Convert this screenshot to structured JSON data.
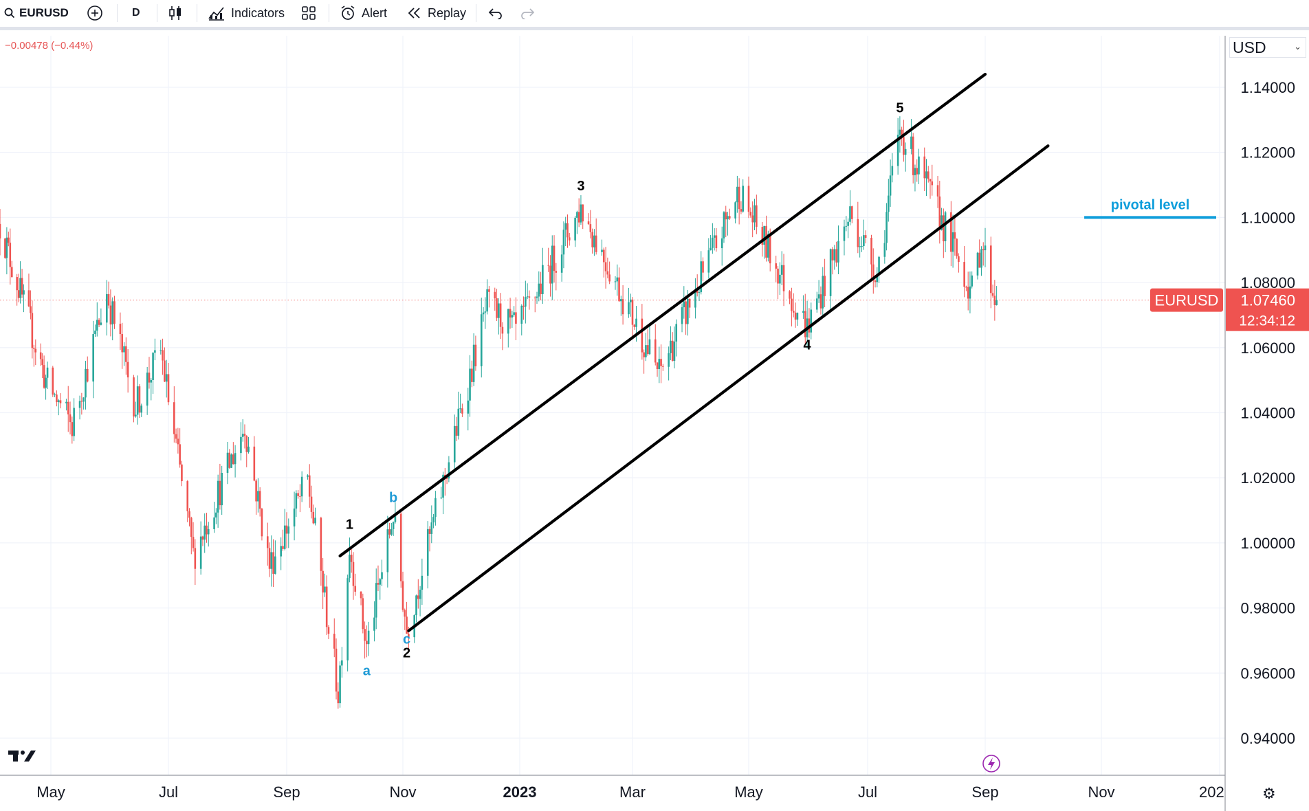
{
  "toolbar": {
    "symbol": "EURUSD",
    "interval": "D",
    "indicators_label": "Indicators",
    "alert_label": "Alert",
    "replay_label": "Replay"
  },
  "header": {
    "change": "−0.00478 (−0.44%)"
  },
  "currency_selector": "USD",
  "price_scale": {
    "ticks": [
      "1.14000",
      "1.12000",
      "1.10000",
      "1.08000",
      "1.06000",
      "1.04000",
      "1.02000",
      "1.00000",
      "0.98000",
      "0.96000",
      "0.94000"
    ]
  },
  "time_axis": {
    "labels": [
      "May",
      "Jul",
      "Sep",
      "Nov",
      "2023",
      "Mar",
      "May",
      "Jul",
      "Sep",
      "Nov",
      "202"
    ]
  },
  "last_price": {
    "symbol": "EURUSD",
    "price": "1.07460",
    "countdown": "12:34:12",
    "color": "#ef5350"
  },
  "annotations": {
    "waves": [
      "1",
      "2",
      "3",
      "4",
      "5"
    ],
    "corrective": [
      "a",
      "b",
      "c"
    ],
    "pivotal_label": "pivotal level",
    "pivotal_value": 1.1
  },
  "colors": {
    "up": "#26a69a",
    "down": "#ef5350",
    "pivotal": "#0d9ddb",
    "corrective_labels": "#1f9bd6"
  },
  "chart_data": {
    "type": "candlestick",
    "symbol": "EURUSD",
    "interval": "D",
    "y_range": [
      0.93,
      1.155
    ],
    "x_range": [
      "2022-04-01",
      "2024-01-05"
    ],
    "key_points": [
      {
        "date": "2022-04-01",
        "value": 1.098
      },
      {
        "date": "2022-04-28",
        "value": 1.05
      },
      {
        "date": "2022-05-12",
        "value": 1.036
      },
      {
        "date": "2022-05-30",
        "value": 1.077
      },
      {
        "date": "2022-06-14",
        "value": 1.042
      },
      {
        "date": "2022-06-27",
        "value": 1.059
      },
      {
        "date": "2022-07-14",
        "value": 0.996
      },
      {
        "date": "2022-08-10",
        "value": 1.036
      },
      {
        "date": "2022-08-23",
        "value": 0.993
      },
      {
        "date": "2022-09-12",
        "value": 1.019
      },
      {
        "date": "2022-09-28",
        "value": 0.954
      },
      {
        "date": "2022-10-04",
        "value": 0.999
      },
      {
        "date": "2022-10-13",
        "value": 0.968
      },
      {
        "date": "2022-10-27",
        "value": 1.009
      },
      {
        "date": "2022-11-03",
        "value": 0.973
      },
      {
        "date": "2022-12-15",
        "value": 1.073
      },
      {
        "date": "2022-12-30",
        "value": 1.065
      },
      {
        "date": "2023-02-02",
        "value": 1.103
      },
      {
        "date": "2023-03-15",
        "value": 1.052
      },
      {
        "date": "2023-04-26",
        "value": 1.108
      },
      {
        "date": "2023-05-31",
        "value": 1.066
      },
      {
        "date": "2023-06-22",
        "value": 1.101
      },
      {
        "date": "2023-07-06",
        "value": 1.083
      },
      {
        "date": "2023-07-18",
        "value": 1.127
      },
      {
        "date": "2023-08-10",
        "value": 1.098
      },
      {
        "date": "2023-08-25",
        "value": 1.077
      },
      {
        "date": "2023-08-30",
        "value": 1.093
      },
      {
        "date": "2023-09-07",
        "value": 1.0726
      }
    ],
    "wave_labels": [
      {
        "label": "1",
        "date": "2022-10-04",
        "value": 0.999
      },
      {
        "label": "2",
        "date": "2022-11-03",
        "value": 0.973
      },
      {
        "label": "3",
        "date": "2023-02-02",
        "value": 1.103
      },
      {
        "label": "4",
        "date": "2023-05-31",
        "value": 1.066
      },
      {
        "label": "5",
        "date": "2023-07-18",
        "value": 1.127
      },
      {
        "label": "a",
        "date": "2022-10-13",
        "value": 0.968
      },
      {
        "label": "b",
        "date": "2022-10-27",
        "value": 1.009
      },
      {
        "label": "c",
        "date": "2022-11-03",
        "value": 0.973
      }
    ],
    "channel_lines": [
      {
        "name": "upper",
        "from": {
          "date": "2022-09-29",
          "value": 0.996
        },
        "to": {
          "date": "2023-09-01",
          "value": 1.144
        }
      },
      {
        "name": "lower",
        "from": {
          "date": "2022-11-04",
          "value": 0.973
        },
        "to": {
          "date": "2023-10-04",
          "value": 1.122
        }
      }
    ],
    "horizontal_levels": [
      {
        "name": "pivotal level",
        "value": 1.1,
        "from": "2023-10-23",
        "to": "2024-01-05"
      }
    ],
    "last_price": 1.0746
  }
}
